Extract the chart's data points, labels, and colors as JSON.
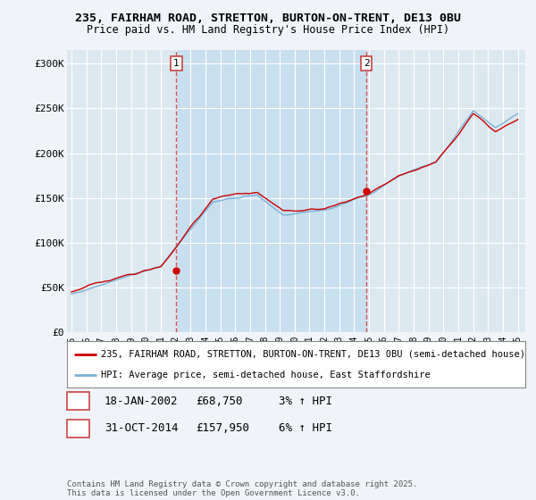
{
  "title1": "235, FAIRHAM ROAD, STRETTON, BURTON-ON-TRENT, DE13 0BU",
  "title2": "Price paid vs. HM Land Registry's House Price Index (HPI)",
  "ylabel_ticks": [
    "£0",
    "£50K",
    "£100K",
    "£150K",
    "£200K",
    "£250K",
    "£300K"
  ],
  "ytick_values": [
    0,
    50000,
    100000,
    150000,
    200000,
    250000,
    300000
  ],
  "ylim": [
    0,
    315000
  ],
  "xlim_start": 1994.7,
  "xlim_end": 2025.5,
  "sale1_x": 2002.05,
  "sale1_y": 68750,
  "sale1_label": "1",
  "sale2_x": 2014.83,
  "sale2_y": 157950,
  "sale2_label": "2",
  "vline1_x": 2002.05,
  "vline2_x": 2014.83,
  "line1_color": "#cc0000",
  "line2_color": "#7ab0d4",
  "background_color": "#f0f4f8",
  "plot_bg_color": "#dce8f0",
  "highlight_color": "#c8dff0",
  "grid_color": "#ffffff",
  "vline_color": "#cc4444",
  "legend1_text": "235, FAIRHAM ROAD, STRETTON, BURTON-ON-TRENT, DE13 0BU (semi-detached house)",
  "legend2_text": "HPI: Average price, semi-detached house, East Staffordshire",
  "annotation1_date": "18-JAN-2002",
  "annotation1_price": "£68,750",
  "annotation1_hpi": "3% ↑ HPI",
  "annotation2_date": "31-OCT-2014",
  "annotation2_price": "£157,950",
  "annotation2_hpi": "6% ↑ HPI",
  "footer": "Contains HM Land Registry data © Crown copyright and database right 2025.\nThis data is licensed under the Open Government Licence v3.0.",
  "xlabel_years": [
    1995,
    1996,
    1997,
    1998,
    1999,
    2000,
    2001,
    2002,
    2003,
    2004,
    2005,
    2006,
    2007,
    2008,
    2009,
    2010,
    2011,
    2012,
    2013,
    2014,
    2015,
    2016,
    2017,
    2018,
    2019,
    2020,
    2021,
    2022,
    2023,
    2024,
    2025
  ]
}
